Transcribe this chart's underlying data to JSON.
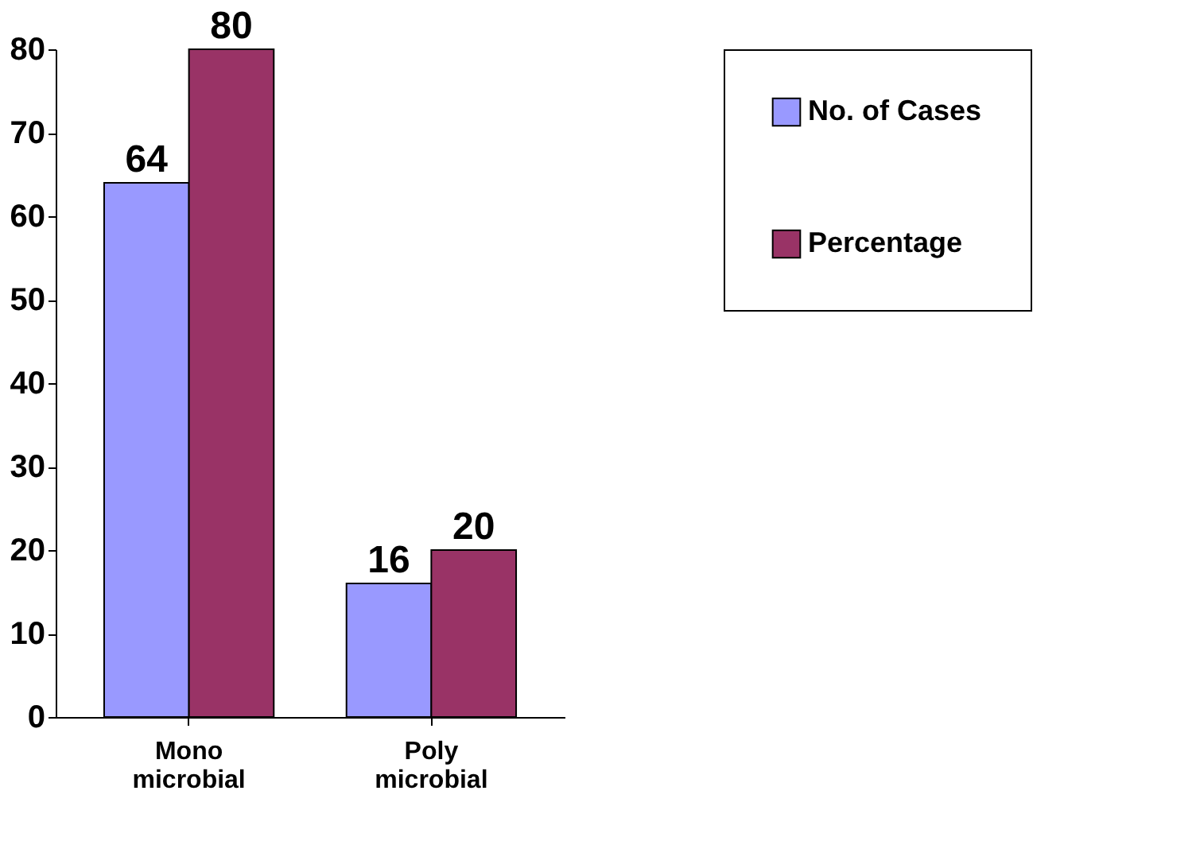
{
  "chart_data": {
    "type": "bar",
    "categories": [
      "Mono microbial",
      "Poly microbial"
    ],
    "series": [
      {
        "name": "No. of Cases",
        "color": "#9999ff",
        "values": [
          64,
          16
        ]
      },
      {
        "name": "Percentage",
        "color": "#993366",
        "values": [
          80,
          20
        ]
      }
    ],
    "ylim": [
      0,
      80
    ],
    "yticks": [
      0,
      10,
      20,
      30,
      40,
      50,
      60,
      70,
      80
    ],
    "data_labels": true,
    "legend": "right",
    "grid": false
  }
}
